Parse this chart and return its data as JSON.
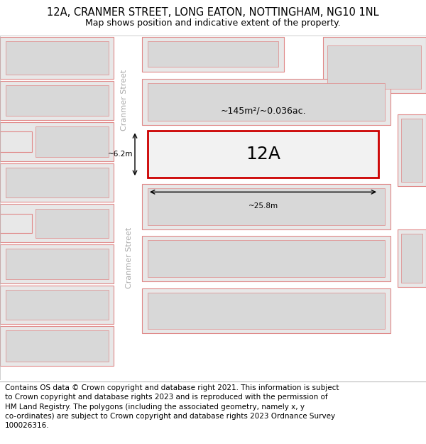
{
  "title": "12A, CRANMER STREET, LONG EATON, NOTTINGHAM, NG10 1NL",
  "subtitle": "Map shows position and indicative extent of the property.",
  "footer_line1": "Contains OS data © Crown copyright and database right 2021. This information is subject",
  "footer_line2": "to Crown copyright and database rights 2023 and is reproduced with the permission of",
  "footer_line3": "HM Land Registry. The polygons (including the associated geometry, namely x, y",
  "footer_line4": "co-ordinates) are subject to Crown copyright and database rights 2023 Ordnance Survey",
  "footer_line5": "100026316.",
  "map_bg": "#f2f2f2",
  "street_fill": "#ffffff",
  "plot_fill": "#e8e8e8",
  "plot_inner_fill": "#d8d8d8",
  "plot_outline": "#e08888",
  "target_fill": "#f2f2f2",
  "target_outline": "#cc0000",
  "area_text": "~145m²/~0.036ac.",
  "label_12a": "12A",
  "dim_width": "~25.8m",
  "dim_height": "~6.2m",
  "street_label": "Cranmer Street",
  "title_fontsize": 10.5,
  "subtitle_fontsize": 9,
  "footer_fontsize": 7.5,
  "label_fontsize": 18,
  "annot_fontsize": 9,
  "dim_fontsize": 7.5,
  "street_fontsize": 8
}
